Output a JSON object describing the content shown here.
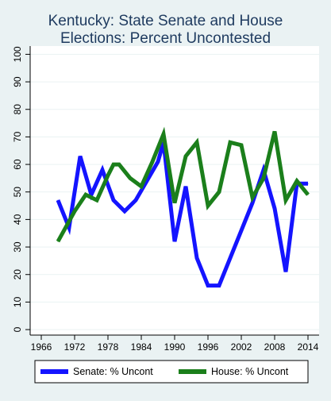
{
  "chart_data": {
    "type": "line",
    "title_lines": [
      "Kentucky: State Senate and House",
      "Elections: Percent Uncontested"
    ],
    "xlabel": "",
    "ylabel": "",
    "xlim": [
      1964,
      2016
    ],
    "ylim": [
      -2,
      103
    ],
    "x_ticks": [
      1966,
      1972,
      1978,
      1984,
      1990,
      1996,
      2002,
      2008,
      2014
    ],
    "y_ticks": [
      0,
      10,
      20,
      30,
      40,
      50,
      60,
      70,
      80,
      90,
      100
    ],
    "grid": true,
    "legend_position": "bottom",
    "colors": {
      "background": "#eaf2f3",
      "plot_background": "#ffffff",
      "grid": "#eaf2f3",
      "title": "#1e3a5f",
      "senate": "#1414ff",
      "house": "#1b7f1b"
    },
    "series": [
      {
        "name": "Senate: % Uncont",
        "color": "#1414ff",
        "x": [
          1969,
          1971,
          1973,
          1975,
          1977,
          1979,
          1981,
          1983,
          1985,
          1987,
          1988,
          1990,
          1992,
          1994,
          1996,
          1998,
          2000,
          2002,
          2004,
          2006,
          2008,
          2010,
          2012,
          2014
        ],
        "y": [
          47,
          37,
          63,
          49,
          58,
          47,
          43,
          47,
          54,
          61,
          68,
          32,
          52,
          26,
          16,
          16,
          26,
          36,
          46,
          58,
          44,
          21,
          53,
          53
        ]
      },
      {
        "name": "House: % Uncont",
        "color": "#1b7f1b",
        "x": [
          1969,
          1972,
          1974,
          1976,
          1978,
          1979,
          1980,
          1982,
          1984,
          1986,
          1988,
          1990,
          1992,
          1994,
          1996,
          1998,
          2000,
          2002,
          2004,
          2006,
          2008,
          2010,
          2012,
          2014
        ],
        "y": [
          32,
          43,
          49,
          47,
          56,
          60,
          60,
          55,
          52,
          61,
          71,
          46,
          63,
          68,
          45,
          50,
          68,
          67,
          48,
          55,
          72,
          47,
          54,
          49
        ]
      }
    ]
  }
}
